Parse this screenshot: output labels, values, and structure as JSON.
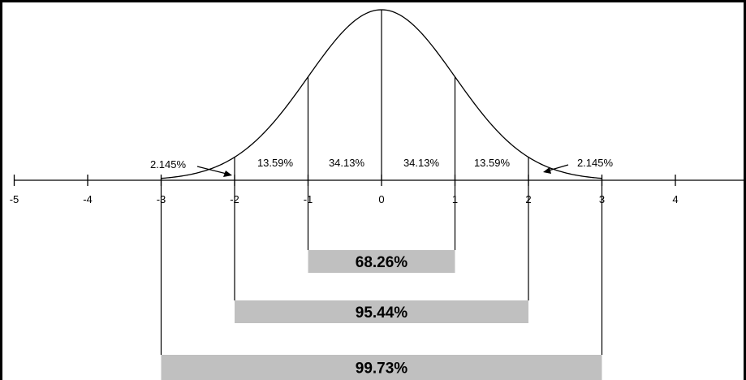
{
  "diagram": {
    "axis": {
      "ticks": [
        "-5",
        "-4",
        "-3",
        "-2",
        "-1",
        "0",
        "1",
        "2",
        "3",
        "4"
      ]
    },
    "segments": [
      {
        "label": "2.145%",
        "range": [
          -3,
          -2
        ]
      },
      {
        "label": "13.59%",
        "range": [
          -2,
          -1
        ]
      },
      {
        "label": "34.13%",
        "range": [
          -1,
          0
        ]
      },
      {
        "label": "34.13%",
        "range": [
          0,
          1
        ]
      },
      {
        "label": "13.59%",
        "range": [
          1,
          2
        ]
      },
      {
        "label": "2.145%",
        "range": [
          2,
          3
        ]
      }
    ],
    "bands": [
      {
        "label": "68.26%",
        "range": [
          -1,
          1
        ]
      },
      {
        "label": "95.44%",
        "range": [
          -2,
          2
        ]
      },
      {
        "label": "99.73%",
        "range": [
          -3,
          3
        ]
      }
    ],
    "colors": {
      "line": "#000000",
      "band_fill": "#c0c0c0",
      "background": "#ffffff"
    }
  }
}
